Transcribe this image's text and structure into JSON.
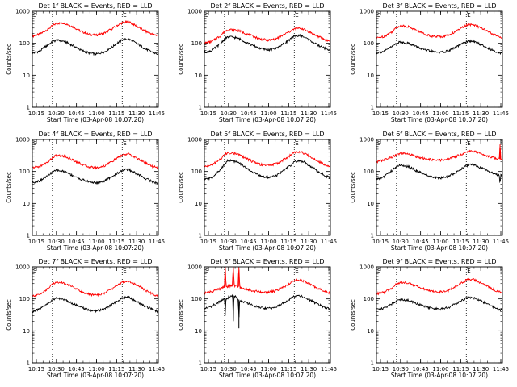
{
  "figure": {
    "colors": {
      "events": "#000000",
      "lld": "#ff0000",
      "background": "#ffffff",
      "axes": "#000000"
    },
    "x_axis_label": "Start Time (03-Apr-08 10:07:20)",
    "y_axis_label": "Counts/sec",
    "corner_markers": [
      "S",
      "E"
    ]
  },
  "chart_data": [
    {
      "type": "line",
      "title": "Det 1f BLACK = Events, RED = LLD",
      "xlabel": "Start Time (03-Apr-08 10:07:20)",
      "ylabel": "Counts/sec",
      "xlim": [
        10.2,
        11.77
      ],
      "ylim": [
        1,
        1000
      ],
      "yscale": "log",
      "x_ticks": [
        "10:15",
        "10:30",
        "10:45",
        "11:00",
        "11:15",
        "11:30",
        "11:45"
      ],
      "y_ticks": [
        "1",
        "10",
        "100",
        "1000"
      ],
      "vlines": [
        10.45,
        11.32
      ],
      "x": [
        10.2,
        10.3,
        10.4,
        10.45,
        10.5,
        10.6,
        10.7,
        10.8,
        10.9,
        11.0,
        11.1,
        11.2,
        11.3,
        11.32,
        11.4,
        11.5,
        11.6,
        11.7,
        11.77
      ],
      "series": [
        {
          "values": [
            165,
            195,
            280,
            350,
            420,
            430,
            330,
            240,
            190,
            180,
            210,
            290,
            410,
            440,
            470,
            340,
            240,
            190,
            175
          ]
        },
        {
          "values": [
            48,
            58,
            90,
            110,
            125,
            115,
            85,
            62,
            50,
            46,
            54,
            78,
            118,
            130,
            135,
            98,
            68,
            52,
            45
          ]
        }
      ]
    },
    {
      "type": "line",
      "title": "Det 2f BLACK = Events, RED = LLD",
      "xlabel": "Start Time (03-Apr-08 10:07:20)",
      "ylabel": "Counts/sec",
      "xlim": [
        10.2,
        11.77
      ],
      "ylim": [
        1,
        1000
      ],
      "yscale": "log",
      "x_ticks": [
        "10:15",
        "10:30",
        "10:45",
        "11:00",
        "11:15",
        "11:30",
        "11:45"
      ],
      "y_ticks": [
        "1",
        "10",
        "100",
        "1000"
      ],
      "vlines": [
        10.45,
        11.32
      ],
      "x": [
        10.2,
        10.3,
        10.4,
        10.45,
        10.5,
        10.6,
        10.7,
        10.8,
        10.9,
        11.0,
        11.1,
        11.2,
        11.3,
        11.32,
        11.4,
        11.5,
        11.6,
        11.7,
        11.77
      ],
      "series": [
        {
          "values": [
            100,
            115,
            170,
            230,
            270,
            260,
            210,
            165,
            135,
            125,
            140,
            190,
            260,
            280,
            300,
            230,
            170,
            130,
            115
          ]
        },
        {
          "values": [
            52,
            60,
            95,
            135,
            160,
            150,
            115,
            85,
            68,
            62,
            70,
            100,
            150,
            165,
            175,
            130,
            90,
            70,
            60
          ]
        }
      ]
    },
    {
      "type": "line",
      "title": "Det 3f BLACK = Events, RED = LLD",
      "xlabel": "Start Time (03-Apr-08 10:07:20)",
      "ylabel": "Counts/sec",
      "xlim": [
        10.2,
        11.77
      ],
      "ylim": [
        1,
        1000
      ],
      "yscale": "log",
      "x_ticks": [
        "10:15",
        "10:30",
        "10:45",
        "11:00",
        "11:15",
        "11:30",
        "11:45"
      ],
      "y_ticks": [
        "1",
        "10",
        "100",
        "1000"
      ],
      "vlines": [
        10.45,
        11.32
      ],
      "x": [
        10.2,
        10.3,
        10.4,
        10.45,
        10.5,
        10.6,
        10.7,
        10.8,
        10.9,
        11.0,
        11.1,
        11.2,
        11.3,
        11.32,
        11.4,
        11.5,
        11.6,
        11.7,
        11.77
      ],
      "series": [
        {
          "values": [
            145,
            165,
            230,
            310,
            360,
            330,
            250,
            195,
            165,
            160,
            180,
            240,
            340,
            370,
            390,
            300,
            220,
            170,
            150
          ]
        },
        {
          "values": [
            50,
            56,
            80,
            100,
            110,
            100,
            78,
            62,
            55,
            52,
            58,
            78,
            105,
            112,
            118,
            92,
            68,
            54,
            48
          ]
        }
      ]
    },
    {
      "type": "line",
      "title": "Det 4f BLACK = Events, RED = LLD",
      "xlabel": "Start Time (03-Apr-08 10:07:20)",
      "ylabel": "Counts/sec",
      "xlim": [
        10.2,
        11.77
      ],
      "ylim": [
        1,
        1000
      ],
      "yscale": "log",
      "x_ticks": [
        "10:15",
        "10:30",
        "10:45",
        "11:00",
        "11:15",
        "11:30",
        "11:45"
      ],
      "y_ticks": [
        "1",
        "10",
        "100",
        "1000"
      ],
      "vlines": [
        10.45,
        11.32
      ],
      "x": [
        10.2,
        10.3,
        10.4,
        10.45,
        10.5,
        10.6,
        10.7,
        10.8,
        10.9,
        11.0,
        11.1,
        11.2,
        11.3,
        11.32,
        11.4,
        11.5,
        11.6,
        11.7,
        11.77
      ],
      "series": [
        {
          "values": [
            130,
            145,
            200,
            270,
            320,
            300,
            230,
            175,
            140,
            130,
            150,
            210,
            300,
            330,
            350,
            260,
            190,
            145,
            125
          ]
        },
        {
          "values": [
            45,
            52,
            75,
            95,
            110,
            100,
            75,
            58,
            48,
            44,
            50,
            70,
            100,
            110,
            115,
            85,
            62,
            48,
            42
          ]
        }
      ]
    },
    {
      "type": "line",
      "title": "Det 5f BLACK = Events, RED = LLD",
      "xlabel": "Start Time (03-Apr-08 10:07:20)",
      "ylabel": "Counts/sec",
      "xlim": [
        10.2,
        11.77
      ],
      "ylim": [
        1,
        1000
      ],
      "yscale": "log",
      "x_ticks": [
        "10:15",
        "10:30",
        "10:45",
        "11:00",
        "11:15",
        "11:30",
        "11:45"
      ],
      "y_ticks": [
        "1",
        "10",
        "100",
        "1000"
      ],
      "vlines": [
        10.45,
        11.32
      ],
      "x": [
        10.2,
        10.3,
        10.4,
        10.45,
        10.5,
        10.6,
        10.7,
        10.8,
        10.9,
        11.0,
        11.1,
        11.2,
        11.3,
        11.32,
        11.4,
        11.5,
        11.6,
        11.7,
        11.77
      ],
      "series": [
        {
          "values": [
            140,
            160,
            240,
            330,
            390,
            360,
            270,
            200,
            165,
            155,
            175,
            240,
            350,
            390,
            410,
            310,
            220,
            165,
            145
          ]
        },
        {
          "values": [
            55,
            65,
            110,
            170,
            230,
            200,
            140,
            95,
            72,
            65,
            75,
            110,
            170,
            200,
            220,
            160,
            105,
            75,
            62
          ]
        }
      ]
    },
    {
      "type": "line",
      "title": "Det 6f BLACK = Events, RED = LLD",
      "xlabel": "Start Time (03-Apr-08 10:07:20)",
      "ylabel": "Counts/sec",
      "xlim": [
        10.2,
        11.77
      ],
      "ylim": [
        1,
        1000
      ],
      "yscale": "log",
      "x_ticks": [
        "10:15",
        "10:30",
        "10:45",
        "11:00",
        "11:15",
        "11:30",
        "11:45"
      ],
      "y_ticks": [
        "1",
        "10",
        "100",
        "1000"
      ],
      "vlines": [
        10.45,
        11.32
      ],
      "x": [
        10.2,
        10.3,
        10.4,
        10.45,
        10.5,
        10.6,
        10.7,
        10.8,
        10.9,
        11.0,
        11.1,
        11.2,
        11.3,
        11.32,
        11.4,
        11.5,
        11.6,
        11.7,
        11.73,
        11.74,
        11.75,
        11.77
      ],
      "series": [
        {
          "values": [
            200,
            230,
            290,
            330,
            370,
            350,
            290,
            250,
            230,
            225,
            245,
            300,
            380,
            410,
            440,
            360,
            300,
            250,
            240,
            700,
            250,
            240
          ]
        },
        {
          "values": [
            55,
            70,
            110,
            140,
            160,
            140,
            105,
            80,
            65,
            62,
            70,
            95,
            140,
            155,
            165,
            130,
            100,
            80,
            75,
            40,
            75,
            72
          ]
        }
      ]
    },
    {
      "type": "line",
      "title": "Det 7f BLACK = Events, RED = LLD",
      "xlabel": "Start Time (03-Apr-08 10:07:20)",
      "ylabel": "Counts/sec",
      "xlim": [
        10.2,
        11.77
      ],
      "ylim": [
        1,
        1000
      ],
      "yscale": "log",
      "x_ticks": [
        "10:15",
        "10:30",
        "10:45",
        "11:00",
        "11:15",
        "11:30",
        "11:45"
      ],
      "y_ticks": [
        "1",
        "10",
        "100",
        "1000"
      ],
      "vlines": [
        10.45,
        11.32
      ],
      "x": [
        10.2,
        10.3,
        10.4,
        10.45,
        10.5,
        10.6,
        10.7,
        10.8,
        10.9,
        11.0,
        11.1,
        11.2,
        11.3,
        11.32,
        11.4,
        11.5,
        11.6,
        11.7,
        11.77
      ],
      "series": [
        {
          "values": [
            120,
            140,
            210,
            290,
            340,
            310,
            235,
            175,
            140,
            130,
            150,
            210,
            310,
            340,
            360,
            270,
            190,
            140,
            120
          ]
        },
        {
          "values": [
            40,
            48,
            72,
            92,
            105,
            95,
            72,
            55,
            45,
            42,
            48,
            68,
            98,
            108,
            112,
            82,
            60,
            46,
            40
          ]
        }
      ]
    },
    {
      "type": "line",
      "title": "Det 8f BLACK = Events, RED = LLD",
      "xlabel": "Start Time (03-Apr-08 10:07:20)",
      "ylabel": "Counts/sec",
      "xlim": [
        10.2,
        11.77
      ],
      "ylim": [
        1,
        1000
      ],
      "yscale": "log",
      "x_ticks": [
        "10:15",
        "10:30",
        "10:45",
        "11:00",
        "11:15",
        "11:30",
        "11:45"
      ],
      "y_ticks": [
        "1",
        "10",
        "100",
        "1000"
      ],
      "vlines": [
        10.45,
        11.32
      ],
      "x": [
        10.2,
        10.3,
        10.4,
        10.45,
        10.46,
        10.47,
        10.5,
        10.55,
        10.56,
        10.57,
        10.6,
        10.62,
        10.63,
        10.64,
        10.7,
        10.8,
        10.9,
        11.0,
        11.1,
        11.2,
        11.3,
        11.32,
        11.4,
        11.5,
        11.6,
        11.7,
        11.77
      ],
      "series": [
        {
          "values": [
            150,
            170,
            210,
            240,
            1000,
            240,
            250,
            260,
            1000,
            260,
            250,
            240,
            1000,
            230,
            210,
            180,
            165,
            160,
            180,
            240,
            340,
            370,
            390,
            300,
            220,
            170,
            150
          ]
        },
        {
          "values": [
            50,
            60,
            85,
            100,
            30,
            100,
            110,
            125,
            20,
            125,
            110,
            95,
            12,
            90,
            80,
            62,
            52,
            50,
            56,
            78,
            110,
            120,
            125,
            95,
            70,
            54,
            48
          ]
        }
      ]
    },
    {
      "type": "line",
      "title": "Det 9f BLACK = Events, RED = LLD",
      "xlabel": "Start Time (03-Apr-08 10:07:20)",
      "ylabel": "Counts/sec",
      "xlim": [
        10.2,
        11.77
      ],
      "ylim": [
        1,
        1000
      ],
      "yscale": "log",
      "x_ticks": [
        "10:15",
        "10:30",
        "10:45",
        "11:00",
        "11:15",
        "11:30",
        "11:45"
      ],
      "y_ticks": [
        "1",
        "10",
        "100",
        "1000"
      ],
      "vlines": [
        10.45,
        11.32
      ],
      "x": [
        10.2,
        10.3,
        10.4,
        10.45,
        10.5,
        10.6,
        10.7,
        10.8,
        10.9,
        11.0,
        11.1,
        11.2,
        11.3,
        11.32,
        11.4,
        11.5,
        11.6,
        11.7,
        11.77
      ],
      "series": [
        {
          "values": [
            145,
            160,
            220,
            290,
            330,
            310,
            250,
            200,
            170,
            165,
            185,
            250,
            360,
            390,
            410,
            310,
            230,
            175,
            155
          ]
        },
        {
          "values": [
            45,
            52,
            72,
            88,
            98,
            90,
            72,
            58,
            50,
            48,
            54,
            72,
            100,
            108,
            112,
            86,
            64,
            50,
            44
          ]
        }
      ]
    }
  ]
}
